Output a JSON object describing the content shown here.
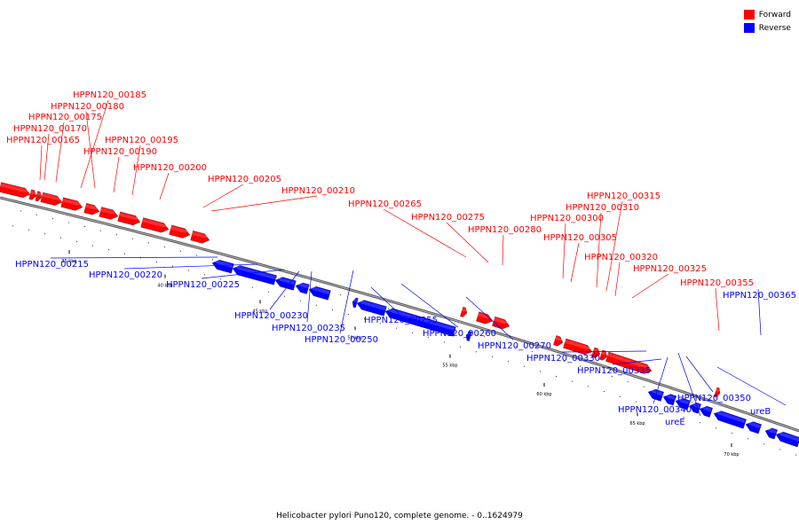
{
  "legend": {
    "forward_label": "Forward",
    "reverse_label": "Reverse",
    "forward_color": "#ff0000",
    "reverse_color": "#0000ff"
  },
  "caption": "Helicobacter pylori Puno120, complete genome. - 0..1624979",
  "scale_labels": [
    "35 kbp",
    "40 kbp",
    "45 kbp",
    "50 kbp",
    "55 kbp",
    "60 kbp",
    "65 kbp",
    "70 kbp"
  ],
  "forward_genes": [
    "HPPN120_00165",
    "HPPN120_00170",
    "HPPN120_00175",
    "HPPN120_00180",
    "HPPN120_00185",
    "HPPN120_00190",
    "HPPN120_00195",
    "HPPN120_00200",
    "HPPN120_00205",
    "HPPN120_00210",
    "HPPN120_00265",
    "HPPN120_00275",
    "HPPN120_00280",
    "HPPN120_00300",
    "HPPN120_00305",
    "HPPN120_00310",
    "HPPN120_00315",
    "HPPN120_00320",
    "HPPN120_00325",
    "HPPN120_00355"
  ],
  "reverse_genes": [
    "HPPN120_00215",
    "HPPN120_00220",
    "HPPN120_00225",
    "HPPN120_00230",
    "HPPN120_00235",
    "HPPN120_00250",
    "HPPN120_00255",
    "HPPN120_00260",
    "HPPN120_00270",
    "HPPN120_00330",
    "HPPN120_00335",
    "HPPN120_00340",
    "ureE",
    "HPPN120_00350",
    "ureB",
    "HPPN120_00365"
  ]
}
